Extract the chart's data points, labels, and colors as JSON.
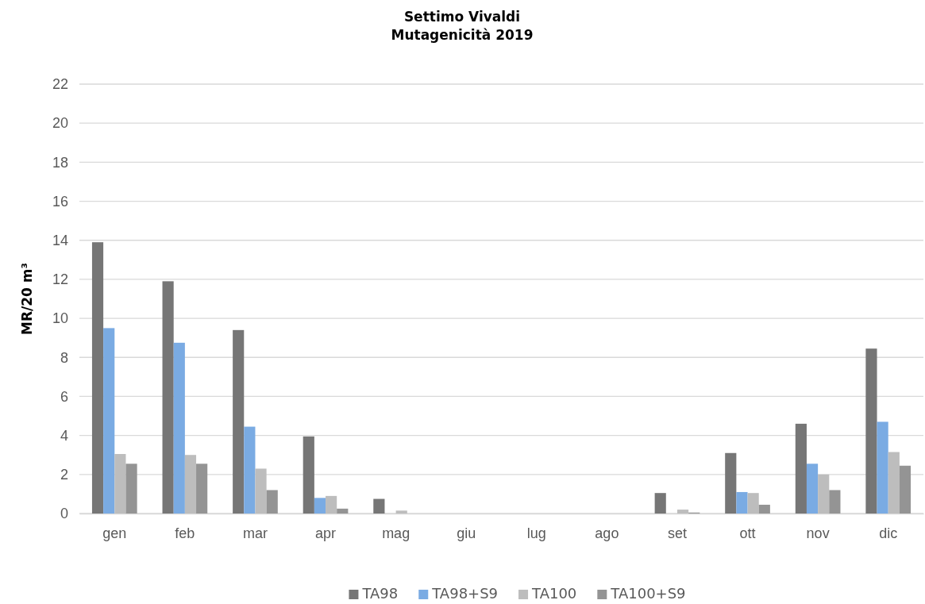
{
  "chart_data": {
    "type": "bar",
    "title": "Settimo Vivaldi\nMutagenicità 2019",
    "ylabel": "MR/20 m³",
    "categories": [
      "gen",
      "feb",
      "mar",
      "apr",
      "mag",
      "giu",
      "lug",
      "ago",
      "set",
      "ott",
      "nov",
      "dic"
    ],
    "series": [
      {
        "name": "TA98",
        "color": "#767676",
        "values": [
          13.9,
          11.9,
          9.4,
          3.95,
          0.75,
          0,
          0,
          0,
          1.05,
          3.1,
          4.6,
          8.45
        ]
      },
      {
        "name": "TA98+S9",
        "color": "#7aabe3",
        "values": [
          9.5,
          8.75,
          4.45,
          0.8,
          0,
          0,
          0,
          0,
          0,
          1.1,
          2.55,
          4.7
        ]
      },
      {
        "name": "TA100",
        "color": "#bdbdbd",
        "values": [
          3.05,
          3.0,
          2.3,
          0.9,
          0.15,
          0,
          0,
          0,
          0.2,
          1.05,
          2.0,
          3.15
        ]
      },
      {
        "name": "TA100+S9",
        "color": "#949494",
        "values": [
          2.55,
          2.55,
          1.2,
          0.25,
          0,
          0,
          0,
          0,
          0.05,
          0.45,
          1.2,
          2.45
        ]
      }
    ],
    "ylim": [
      0,
      22
    ],
    "yticks": [
      0,
      2,
      4,
      6,
      8,
      10,
      12,
      14,
      16,
      18,
      20,
      22
    ],
    "grid": "y",
    "legend": "bottom"
  }
}
